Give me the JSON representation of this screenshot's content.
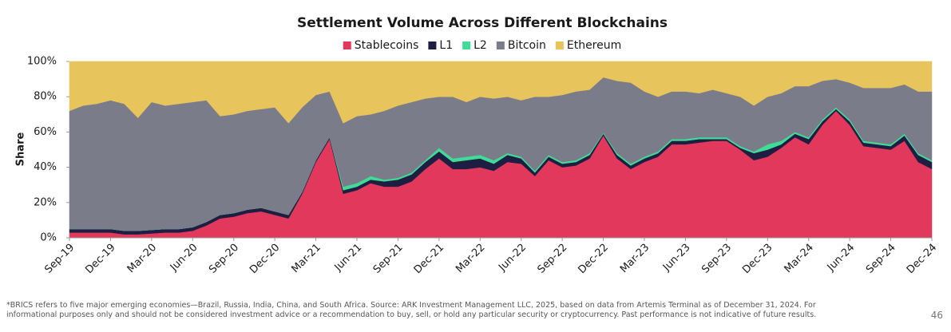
{
  "chart_data": {
    "type": "stacked_area",
    "title": "Settlement Volume Across Different Blockchains",
    "y_label": "Share",
    "categories": [
      "Sep-19",
      null,
      null,
      "Dec-19",
      null,
      null,
      "Mar-20",
      null,
      null,
      "Jun-20",
      null,
      null,
      "Sep-20",
      null,
      null,
      "Dec-20",
      null,
      null,
      "Mar-21",
      null,
      null,
      "Jun-21",
      null,
      null,
      "Sep-21",
      null,
      null,
      "Dec-21",
      null,
      null,
      "Mar-22",
      null,
      null,
      "Jun-22",
      null,
      null,
      "Sep-22",
      null,
      null,
      "Dec-22",
      null,
      null,
      "Mar-23",
      null,
      null,
      "Jun-23",
      null,
      null,
      "Sep-23",
      null,
      null,
      "Dec-23",
      null,
      null,
      "Mar-24",
      null,
      null,
      "Jun-24",
      null,
      null,
      "Sep-24",
      null,
      null,
      "Dec-24"
    ],
    "series": [
      {
        "name": "Stablecoins",
        "color": "#e1385c",
        "values": [
          3,
          3,
          3,
          3,
          2,
          2,
          2.5,
          3,
          3,
          4,
          7,
          11,
          12,
          14,
          15,
          13,
          11,
          25,
          43,
          56,
          25,
          27,
          31,
          29,
          29,
          32,
          39,
          45,
          39,
          39,
          40,
          38,
          43,
          42,
          35,
          44,
          40,
          41,
          45,
          58,
          45,
          39,
          43,
          46,
          53,
          53,
          54,
          55,
          55,
          50,
          44,
          46,
          51,
          57,
          53,
          64,
          72,
          64,
          52,
          51,
          50,
          55,
          43,
          39
        ]
      },
      {
        "name": "L1",
        "color": "#1d1e42",
        "values": [
          2,
          2,
          2,
          2,
          2,
          2,
          2,
          2,
          2,
          2,
          2,
          2,
          2,
          2,
          2,
          2,
          2,
          1,
          1,
          1,
          2,
          2,
          2,
          3,
          4,
          4,
          4,
          4,
          4,
          5,
          5,
          4,
          4,
          3,
          2,
          2,
          2,
          2,
          2,
          1,
          2,
          2,
          2,
          2,
          2,
          2,
          2,
          1,
          1,
          1,
          4,
          4,
          2,
          2,
          3,
          2,
          1,
          2,
          2,
          2,
          2,
          3,
          4,
          4
        ]
      },
      {
        "name": "L2",
        "color": "#3fdc98",
        "values": [
          0,
          0,
          0,
          0,
          0,
          0,
          0,
          0,
          0,
          0,
          0,
          0,
          0,
          0,
          0,
          0,
          0,
          0,
          0,
          0,
          2,
          2,
          2,
          1,
          1,
          1,
          1,
          2,
          2,
          2,
          2,
          2,
          1,
          1,
          1,
          1,
          1,
          1,
          1,
          0.5,
          1,
          1,
          1,
          1,
          1,
          1,
          1,
          1,
          1,
          1,
          1,
          3,
          2,
          1,
          1,
          1,
          1,
          1,
          1,
          1,
          1,
          1,
          1,
          1
        ]
      },
      {
        "name": "Bitcoin",
        "color": "#7b7c89",
        "values": [
          67,
          70,
          71,
          73,
          72,
          64,
          72.5,
          70,
          71,
          71,
          69,
          56,
          56,
          56,
          56,
          59,
          52,
          48,
          37,
          26,
          36,
          38,
          35,
          39,
          41,
          40,
          35,
          29,
          35,
          31,
          33,
          35,
          32,
          32,
          42,
          33,
          38,
          39,
          36,
          31.5,
          41,
          46,
          37,
          31,
          27,
          27,
          25,
          27,
          25,
          28,
          26,
          27,
          27,
          26,
          29,
          22,
          16,
          21,
          30,
          31,
          32,
          28,
          35,
          39
        ]
      },
      {
        "name": "Ethereum",
        "color": "#e7c45c",
        "values": [
          28,
          25,
          24,
          22,
          24,
          32,
          23,
          25,
          24,
          23,
          22,
          31,
          30,
          28,
          27,
          26,
          35,
          26,
          19,
          17,
          35,
          31,
          30,
          28,
          25,
          23,
          21,
          20,
          20,
          23,
          20,
          21,
          20,
          22,
          20,
          20,
          19,
          17,
          16,
          9,
          11,
          12,
          17,
          20,
          17,
          17,
          18,
          16,
          18,
          20,
          25,
          20,
          18,
          14,
          14,
          11,
          10,
          12,
          15,
          15,
          15,
          13,
          17,
          17
        ]
      }
    ],
    "ylim": [
      0,
      100
    ],
    "yticks": [
      {
        "value": 0,
        "label": "0%"
      },
      {
        "value": 20,
        "label": "20%"
      },
      {
        "value": 40,
        "label": "40%"
      },
      {
        "value": 60,
        "label": "60%"
      },
      {
        "value": 80,
        "label": "80%"
      },
      {
        "value": 100,
        "label": "100%"
      }
    ],
    "legend": "top",
    "footnote": "*BRICS refers to five major emerging economies—Brazil, Russia, India, China, and South Africa. Source: ARK Investment Management LLC, 2025, based on data from Artemis Terminal as of December 31, 2024. For informational purposes only and should not be considered investment advice or a recommendation to buy, sell, or hold any particular security or cryptocurrency. Past performance is not indicative of future results.",
    "page_number": "46"
  }
}
